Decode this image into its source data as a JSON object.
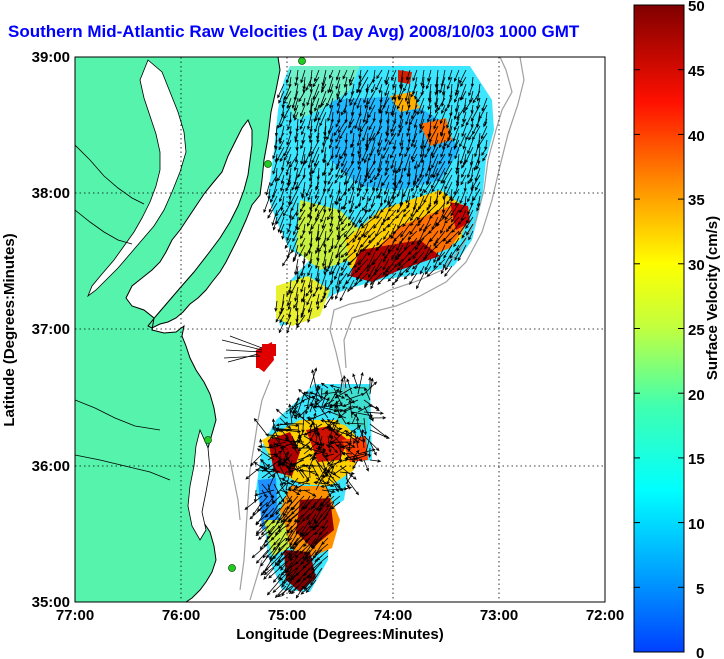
{
  "title": "Southern Mid-Atlantic Raw Velocities (1 Day Avg) 2008/10/03 1000 GMT",
  "axes": {
    "xlabel": "Longitude (Degrees:Minutes)",
    "ylabel": "Latitude (Degrees:Minutes)",
    "xticks": [
      "77:00",
      "76:00",
      "75:00",
      "74:00",
      "73:00",
      "72:00"
    ],
    "yticks": [
      "39:00",
      "38:00",
      "37:00",
      "36:00",
      "35:00"
    ]
  },
  "colorbar": {
    "label": "Surface Velocity (cm/s)",
    "ticks": [
      "50",
      "45",
      "40",
      "35",
      "30",
      "25",
      "20",
      "15",
      "10",
      "5",
      "0"
    ],
    "min": 0,
    "max": 50
  },
  "colors": {
    "title": "#0000ff",
    "land": "#55f3ab",
    "coast": "#000000",
    "bathymetry": "#a0a0a0",
    "station": "#22cc22"
  }
}
